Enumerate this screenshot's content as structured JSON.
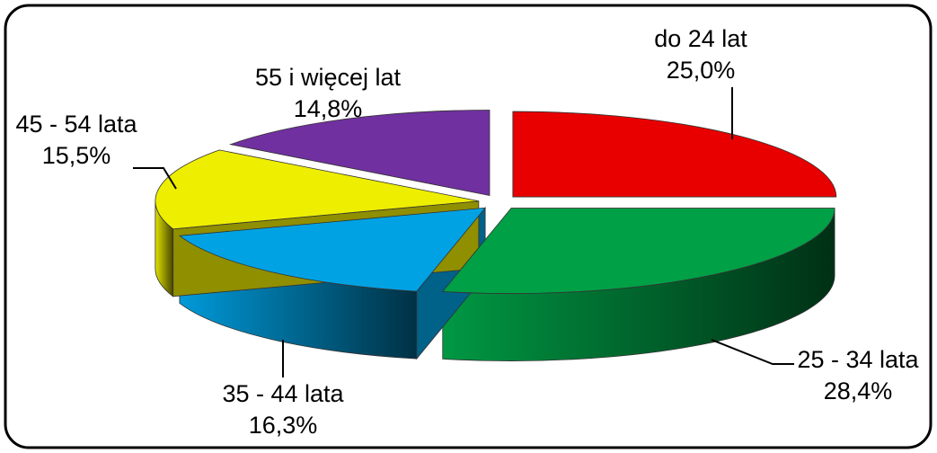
{
  "chart_data": {
    "type": "pie",
    "categories": [
      "do 24 lat",
      "25 - 34 lata",
      "35 - 44 lata",
      "45 - 54 lata",
      "55 i więcej lat"
    ],
    "values": [
      25.0,
      28.4,
      16.3,
      15.5,
      14.8
    ],
    "value_labels": [
      "25,0%",
      "28,4%",
      "16,3%",
      "15,5%",
      "14,8%"
    ],
    "colors": [
      "#e80000",
      "#00a046",
      "#00a2e4",
      "#eeee00",
      "#7030a0"
    ]
  }
}
